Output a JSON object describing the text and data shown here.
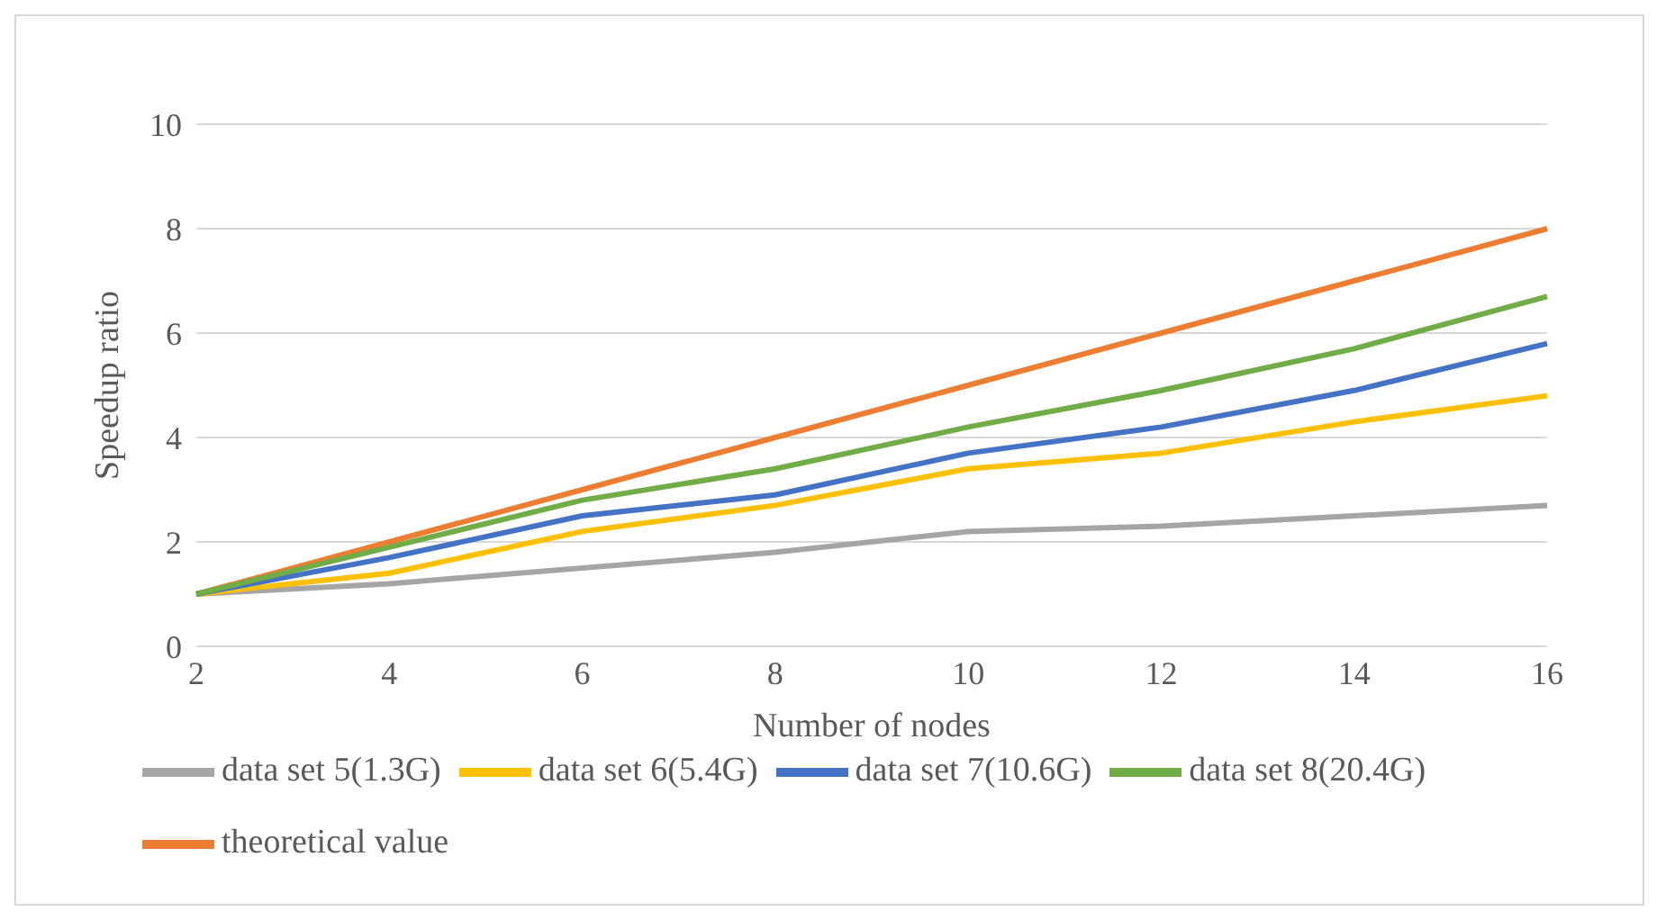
{
  "chart_data": {
    "type": "line",
    "xlabel": "Number of nodes",
    "ylabel": "Speedup ratio",
    "categories": [
      "2",
      "4",
      "6",
      "8",
      "10",
      "12",
      "14",
      "16"
    ],
    "series": [
      {
        "name": "theoretical value",
        "color": "#ed7d31",
        "values": [
          1,
          2,
          3,
          4,
          5,
          6,
          7,
          8
        ]
      },
      {
        "name": "data set 5(1.3G)",
        "color": "#a5a5a5",
        "values": [
          1,
          1.2,
          1.5,
          1.8,
          2.2,
          2.3,
          2.5,
          2.7
        ]
      },
      {
        "name": "data set 6(5.4G)",
        "color": "#ffc000",
        "values": [
          1,
          1.4,
          2.2,
          2.7,
          3.4,
          3.7,
          4.3,
          4.8
        ]
      },
      {
        "name": "data set 7(10.6G)",
        "color": "#4472c4",
        "values": [
          1,
          1.7,
          2.5,
          2.9,
          3.7,
          4.2,
          4.9,
          5.8
        ]
      },
      {
        "name": "data set 8(20.4G)",
        "color": "#70ad47",
        "values": [
          1,
          1.9,
          2.8,
          3.4,
          4.2,
          4.9,
          5.7,
          6.7
        ]
      }
    ],
    "ylim": [
      0,
      10
    ],
    "yticks": [
      0,
      2,
      4,
      6,
      8,
      10
    ],
    "grid": "y",
    "legend": "bottom",
    "marker": "none",
    "line_style": "solid"
  }
}
